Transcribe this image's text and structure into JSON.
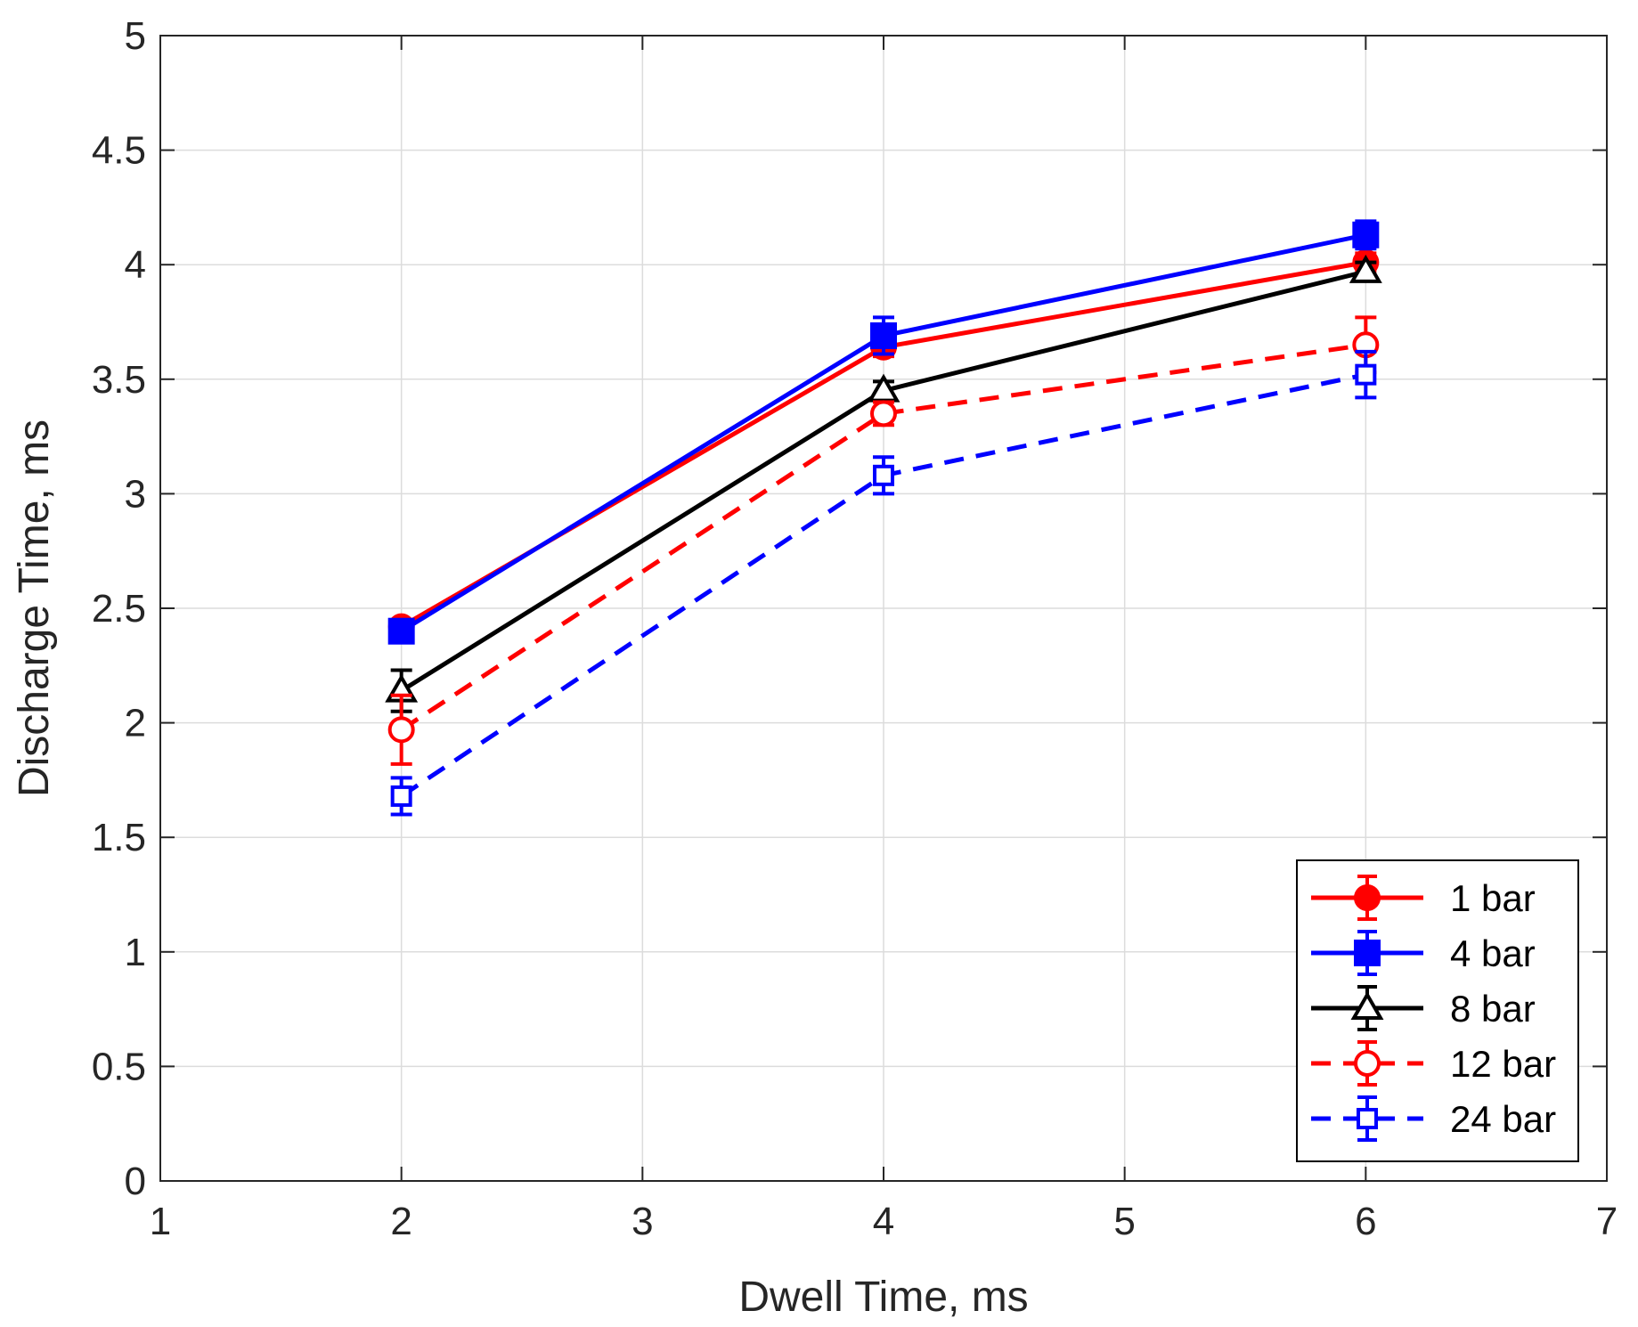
{
  "chart_data": {
    "type": "line",
    "title": "",
    "xlabel": "Dwell Time, ms",
    "ylabel": "Discharge Time, ms",
    "xlim": [
      1,
      7
    ],
    "ylim": [
      0,
      5
    ],
    "xticks": [
      1,
      2,
      3,
      4,
      5,
      6,
      7
    ],
    "xtick_labels": [
      "1",
      "2",
      "3",
      "4",
      "5",
      "6",
      "7"
    ],
    "yticks": [
      0,
      0.5,
      1,
      1.5,
      2,
      2.5,
      3,
      3.5,
      4,
      4.5,
      5
    ],
    "ytick_labels": [
      "0",
      "0.5",
      "1",
      "1.5",
      "2",
      "2.5",
      "3",
      "3.5",
      "4",
      "4.5",
      "5"
    ],
    "grid": true,
    "legend_position": "bottom-right",
    "x": [
      2,
      4,
      6
    ],
    "series": [
      {
        "name": "1 bar",
        "values": [
          2.42,
          3.64,
          4.01
        ],
        "errors": [
          0.03,
          0.04,
          0.04
        ],
        "color": "#ff0000",
        "dash": "solid",
        "marker": "circle",
        "filled": true
      },
      {
        "name": "4 bar",
        "values": [
          2.4,
          3.69,
          4.13
        ],
        "errors": [
          0.04,
          0.08,
          0.06
        ],
        "color": "#0000ff",
        "dash": "solid",
        "marker": "square",
        "filled": true
      },
      {
        "name": "8 bar",
        "values": [
          2.14,
          3.45,
          3.97
        ],
        "errors": [
          0.09,
          0.04,
          0.04
        ],
        "color": "#000000",
        "dash": "solid",
        "marker": "triangle",
        "filled": false
      },
      {
        "name": "12 bar",
        "values": [
          1.97,
          3.35,
          3.65
        ],
        "errors": [
          0.15,
          0.05,
          0.12
        ],
        "color": "#ff0000",
        "dash": "dashed",
        "marker": "circle",
        "filled": false
      },
      {
        "name": "24 bar",
        "values": [
          1.68,
          3.08,
          3.52
        ],
        "errors": [
          0.08,
          0.08,
          0.1
        ],
        "color": "#0000ff",
        "dash": "dashed",
        "marker": "square",
        "filled": false
      }
    ]
  }
}
